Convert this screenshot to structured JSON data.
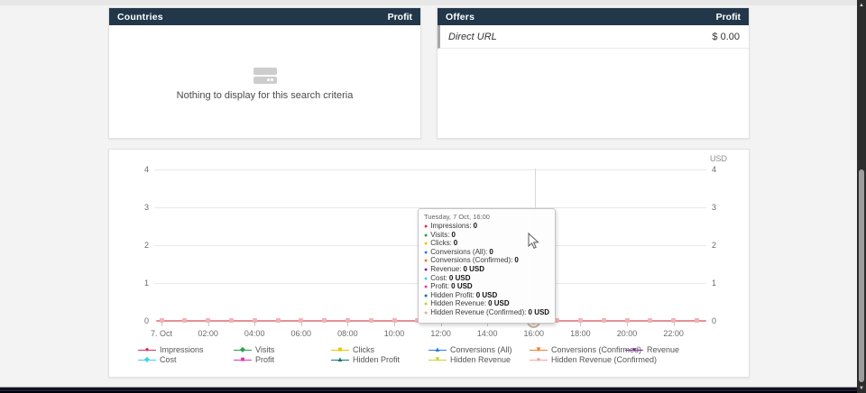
{
  "page": {
    "header_color": "#22384a"
  },
  "countries_panel": {
    "title": "Countries",
    "value_header": "Profit",
    "empty_message": "Nothing to display for this search criteria"
  },
  "offers_panel": {
    "title": "Offers",
    "value_header": "Profit",
    "rows": [
      {
        "name": "Direct URL",
        "value": "$ 0.00"
      }
    ]
  },
  "chart_data": {
    "type": "line",
    "unit_label": "USD",
    "ylim": [
      0,
      4
    ],
    "y_ticks": [
      4,
      3,
      2,
      1,
      0
    ],
    "x_tick_labels": [
      "7. Oct",
      "02:00",
      "04:00",
      "06:00",
      "08:00",
      "10:00",
      "12:00",
      "14:00",
      "16:00",
      "18:00",
      "20:00",
      "22:00"
    ],
    "points_per_day": 24,
    "hover_index": 16,
    "axis_line_color": "#e68f93",
    "marker_fill": "#f3b1b4",
    "legend_position": "bottom",
    "grid": true,
    "series": [
      {
        "name": "Impressions",
        "color": "#d8335f",
        "symbol": "circle",
        "money": false,
        "values": [
          0,
          0,
          0,
          0,
          0,
          0,
          0,
          0,
          0,
          0,
          0,
          0,
          0,
          0,
          0,
          0,
          0,
          0,
          0,
          0,
          0,
          0,
          0,
          0
        ]
      },
      {
        "name": "Visits",
        "color": "#2aa14b",
        "symbol": "diamond",
        "money": false,
        "values": [
          0,
          0,
          0,
          0,
          0,
          0,
          0,
          0,
          0,
          0,
          0,
          0,
          0,
          0,
          0,
          0,
          0,
          0,
          0,
          0,
          0,
          0,
          0,
          0
        ]
      },
      {
        "name": "Clicks",
        "color": "#eec500",
        "symbol": "square",
        "money": false,
        "values": [
          0,
          0,
          0,
          0,
          0,
          0,
          0,
          0,
          0,
          0,
          0,
          0,
          0,
          0,
          0,
          0,
          0,
          0,
          0,
          0,
          0,
          0,
          0,
          0
        ]
      },
      {
        "name": "Conversions (All)",
        "color": "#2f7ed8",
        "symbol": "triangle",
        "money": false,
        "values": [
          0,
          0,
          0,
          0,
          0,
          0,
          0,
          0,
          0,
          0,
          0,
          0,
          0,
          0,
          0,
          0,
          0,
          0,
          0,
          0,
          0,
          0,
          0,
          0
        ]
      },
      {
        "name": "Conversions (Confirmed)",
        "color": "#ee7d30",
        "symbol": "triangle-down",
        "money": false,
        "values": [
          0,
          0,
          0,
          0,
          0,
          0,
          0,
          0,
          0,
          0,
          0,
          0,
          0,
          0,
          0,
          0,
          0,
          0,
          0,
          0,
          0,
          0,
          0,
          0
        ]
      },
      {
        "name": "Revenue",
        "color": "#7b2d9b",
        "symbol": "circle",
        "money": true,
        "values": [
          0,
          0,
          0,
          0,
          0,
          0,
          0,
          0,
          0,
          0,
          0,
          0,
          0,
          0,
          0,
          0,
          0,
          0,
          0,
          0,
          0,
          0,
          0,
          0
        ]
      },
      {
        "name": "Cost",
        "color": "#41d1e8",
        "symbol": "diamond",
        "money": true,
        "values": [
          0,
          0,
          0,
          0,
          0,
          0,
          0,
          0,
          0,
          0,
          0,
          0,
          0,
          0,
          0,
          0,
          0,
          0,
          0,
          0,
          0,
          0,
          0,
          0
        ]
      },
      {
        "name": "Profit",
        "color": "#e637ae",
        "symbol": "square",
        "money": true,
        "values": [
          0,
          0,
          0,
          0,
          0,
          0,
          0,
          0,
          0,
          0,
          0,
          0,
          0,
          0,
          0,
          0,
          0,
          0,
          0,
          0,
          0,
          0,
          0,
          0
        ]
      },
      {
        "name": "Hidden Profit",
        "color": "#17737d",
        "symbol": "triangle",
        "money": true,
        "values": [
          0,
          0,
          0,
          0,
          0,
          0,
          0,
          0,
          0,
          0,
          0,
          0,
          0,
          0,
          0,
          0,
          0,
          0,
          0,
          0,
          0,
          0,
          0,
          0
        ]
      },
      {
        "name": "Hidden Revenue",
        "color": "#c3d62c",
        "symbol": "triangle-down",
        "money": true,
        "values": [
          0,
          0,
          0,
          0,
          0,
          0,
          0,
          0,
          0,
          0,
          0,
          0,
          0,
          0,
          0,
          0,
          0,
          0,
          0,
          0,
          0,
          0,
          0,
          0
        ]
      },
      {
        "name": "Hidden Revenue (Confirmed)",
        "color": "#f2a5a3",
        "symbol": "circle",
        "money": true,
        "values": [
          0,
          0,
          0,
          0,
          0,
          0,
          0,
          0,
          0,
          0,
          0,
          0,
          0,
          0,
          0,
          0,
          0,
          0,
          0,
          0,
          0,
          0,
          0,
          0
        ]
      }
    ]
  },
  "tooltip": {
    "title": "Tuesday, 7 Oct, 16:00",
    "rows": [
      {
        "name": "Impressions",
        "value": "0"
      },
      {
        "name": "Visits",
        "value": "0"
      },
      {
        "name": "Clicks",
        "value": "0"
      },
      {
        "name": "Conversions (All)",
        "value": "0"
      },
      {
        "name": "Conversions (Confirmed)",
        "value": "0"
      },
      {
        "name": "Revenue",
        "value": "0 USD"
      },
      {
        "name": "Cost",
        "value": "0 USD"
      },
      {
        "name": "Profit",
        "value": "0 USD"
      },
      {
        "name": "Hidden Profit",
        "value": "0 USD"
      },
      {
        "name": "Hidden Revenue",
        "value": "0 USD"
      },
      {
        "name": "Hidden Revenue (Confirmed)",
        "value": "0 USD"
      }
    ]
  }
}
